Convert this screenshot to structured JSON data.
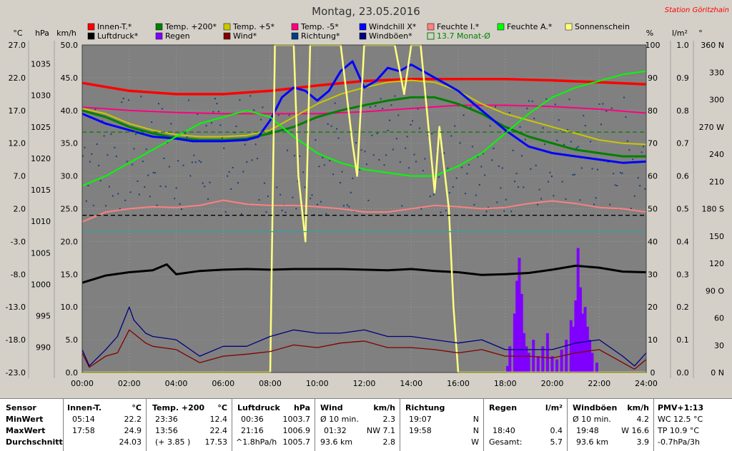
{
  "header": {
    "title": "Montag, 23.05.2016",
    "station": "Station Göritzhain"
  },
  "colors": {
    "plot_bg": "#808080",
    "innen": "#ff0000",
    "temp200": "#008000",
    "temp5": "#c8c800",
    "tempm5": "#ff0080",
    "windchill": "#0000ff",
    "feuchte_i": "#ff8080",
    "feuchte_a": "#00ff00",
    "sonne": "#ffff80",
    "luftdruck": "#000000",
    "regen": "#8000ff",
    "wind": "#800000",
    "richtung": "#004080",
    "windboeen": "#000080"
  },
  "legend": [
    {
      "label": "Innen-T.*",
      "color": "#ff0000"
    },
    {
      "label": "Temp. +200*",
      "color": "#008000"
    },
    {
      "label": "Temp. +5*",
      "color": "#c8c800"
    },
    {
      "label": "Temp. -5*",
      "color": "#ff0080"
    },
    {
      "label": "Windchill X*",
      "color": "#0000ff"
    },
    {
      "label": "Feuchte I.*",
      "color": "#ff8080"
    },
    {
      "label": "Feuchte A.*",
      "color": "#00ff00"
    },
    {
      "label": "Sonnenschein",
      "color": "#ffff80"
    },
    {
      "label": "Luftdruck*",
      "color": "#000000"
    },
    {
      "label": "Regen",
      "color": "#8000ff"
    },
    {
      "label": "Wind*",
      "color": "#800000"
    },
    {
      "label": "Richtung*",
      "color": "#004080"
    },
    {
      "label": "Windböen*",
      "color": "#000080"
    },
    {
      "label": "13.7 Monat-Ø",
      "color": "#008000",
      "outline": true
    }
  ],
  "axis_units": {
    "celsius": "°C",
    "hpa": "hPa",
    "kmh": "km/h",
    "percent": "%",
    "lm2": "l/m²",
    "degree": "°"
  },
  "chart_data": {
    "type": "line",
    "title": "Montag, 23.05.2016",
    "x_ticks": [
      "00:00",
      "02:00",
      "04:00",
      "06:00",
      "08:00",
      "10:00",
      "12:00",
      "14:00",
      "16:00",
      "18:00",
      "20:00",
      "22:00",
      "24:00"
    ],
    "xlim": [
      0,
      24
    ],
    "axes": {
      "celsius": {
        "ticks": [
          "27.0",
          "22.0",
          "17.0",
          "12.0",
          "7.0",
          "2.0",
          "-3.0",
          "-8.0",
          "-13.0",
          "-18.0",
          "-23.0"
        ],
        "ylim": [
          -23,
          27
        ]
      },
      "hpa": {
        "ticks": [
          "1035",
          "1030",
          "1025",
          "1020",
          "1015",
          "1010",
          "1005",
          "1000",
          "995",
          "990"
        ],
        "ylim": [
          990,
          1040
        ]
      },
      "kmh": {
        "ticks": [
          "50.0",
          "45.0",
          "40.0",
          "35.0",
          "30.0",
          "25.0",
          "20.0",
          "15.0",
          "10.0",
          "5.0",
          "0.0"
        ],
        "ylim": [
          0,
          50
        ]
      },
      "percent": {
        "ticks": [
          "100",
          "90",
          "80",
          "70",
          "60",
          "50",
          "40",
          "30",
          "20",
          "10",
          "0"
        ],
        "ylim": [
          0,
          100
        ]
      },
      "lm2": {
        "ticks": [
          "1.0",
          "0.9",
          "0.8",
          "0.7",
          "0.6",
          "0.5",
          "0.4",
          "0.3",
          "0.2",
          "0.1",
          "0.0"
        ],
        "ylim": [
          0,
          1
        ]
      },
      "degree": {
        "ticks": [
          "360 N",
          "330",
          "300",
          "270 W",
          "240",
          "210",
          "180 S",
          "150",
          "120",
          "90 O",
          "60",
          "30",
          "0 N"
        ],
        "ylim": [
          0,
          360
        ]
      }
    },
    "series": [
      {
        "name": "Innen-T.*",
        "color": "#ff0000",
        "unit": "kmh",
        "x": [
          0,
          2,
          4,
          6,
          8,
          10,
          12,
          14,
          16,
          18,
          20,
          22,
          24
        ],
        "y": [
          44.2,
          43.0,
          42.5,
          42.5,
          43.0,
          43.8,
          44.5,
          44.8,
          44.8,
          44.8,
          44.6,
          44.3,
          44.0
        ]
      },
      {
        "name": "Temp. -5*",
        "color": "#ff0080",
        "unit": "kmh",
        "x": [
          0,
          2,
          4,
          6,
          8,
          10,
          12,
          14,
          16,
          18,
          20,
          22,
          24
        ],
        "y": [
          40.5,
          40.0,
          39.7,
          39.5,
          39.5,
          39.5,
          39.8,
          40.3,
          40.8,
          40.8,
          40.6,
          40.2,
          39.6
        ]
      },
      {
        "name": "Temp. +5*",
        "color": "#c8c800",
        "unit": "kmh",
        "x": [
          0,
          1,
          2,
          3,
          4,
          5,
          6,
          7,
          8,
          9,
          10,
          11,
          12,
          13,
          14,
          15,
          16,
          17,
          18,
          19,
          20,
          21,
          22,
          23,
          24
        ],
        "y": [
          40.3,
          39.5,
          38.0,
          37.0,
          36.3,
          36.0,
          36.0,
          36.2,
          37.0,
          39.0,
          41.0,
          42.5,
          43.5,
          44.3,
          44.6,
          44.3,
          43.0,
          41.0,
          39.5,
          38.5,
          37.5,
          36.5,
          35.5,
          35.0,
          34.8
        ]
      },
      {
        "name": "Temp. +200*",
        "color": "#008000",
        "unit": "kmh",
        "x": [
          0,
          1,
          2,
          3,
          4,
          5,
          6,
          7,
          8,
          9,
          10,
          11,
          12,
          13,
          14,
          15,
          16,
          17,
          18,
          19,
          20,
          21,
          22,
          23,
          24
        ],
        "y": [
          40.0,
          39.0,
          37.5,
          36.5,
          35.8,
          35.5,
          35.5,
          35.7,
          36.5,
          37.5,
          39.0,
          40.0,
          40.8,
          41.5,
          42.0,
          42.0,
          41.0,
          39.5,
          37.5,
          36.0,
          35.0,
          34.0,
          33.5,
          33.0,
          33.0
        ]
      },
      {
        "name": "Windchill X*",
        "color": "#0000ff",
        "unit": "kmh",
        "x": [
          0,
          1,
          2,
          3,
          4,
          4.7,
          5,
          6,
          7,
          7.5,
          8,
          8.5,
          9,
          9.5,
          10,
          10.5,
          11,
          11.5,
          12,
          12.5,
          13,
          13.5,
          14,
          14.5,
          15,
          15.5,
          16,
          17,
          18,
          19,
          20,
          21,
          22,
          23,
          24
        ],
        "y": [
          39.5,
          38.0,
          37.0,
          36.0,
          35.7,
          35.3,
          35.3,
          35.3,
          35.5,
          36.0,
          38.5,
          42.0,
          43.5,
          43.0,
          41.5,
          43.0,
          46.0,
          47.5,
          43.5,
          44.5,
          46.5,
          46.0,
          47.0,
          46.0,
          45.0,
          44.0,
          43.0,
          40.0,
          37.0,
          34.5,
          33.5,
          33.0,
          32.5,
          32.0,
          32.2
        ]
      },
      {
        "name": "Feuchte A.*",
        "color": "#00ff00",
        "unit": "kmh",
        "x": [
          0,
          1,
          2,
          3,
          4,
          5,
          6,
          7,
          8,
          9,
          10,
          11,
          12,
          13,
          14,
          15,
          16,
          17,
          18,
          19,
          20,
          21,
          22,
          23,
          24
        ],
        "y": [
          28.5,
          30.0,
          32.0,
          34.0,
          36.0,
          38.0,
          39.0,
          40.0,
          39.0,
          36.0,
          33.5,
          32.0,
          31.0,
          30.5,
          30.0,
          30.0,
          31.5,
          33.5,
          36.5,
          39.5,
          42.0,
          43.5,
          44.5,
          45.5,
          46.0
        ]
      },
      {
        "name": "Feuchte I.*",
        "color": "#ff8080",
        "unit": "kmh",
        "x": [
          0,
          1,
          2,
          3,
          4,
          5,
          6,
          7,
          8,
          9,
          10,
          11,
          12,
          13,
          14,
          15,
          16,
          17,
          18,
          19,
          20,
          21,
          22,
          23,
          24
        ],
        "y": [
          23.0,
          24.5,
          25.0,
          25.3,
          25.2,
          25.5,
          26.3,
          25.7,
          25.5,
          25.5,
          25.3,
          25.0,
          24.5,
          24.5,
          25.0,
          25.5,
          25.3,
          25.0,
          25.2,
          25.8,
          26.2,
          25.8,
          25.2,
          25.0,
          24.5
        ]
      },
      {
        "name": "Luftdruck*",
        "color": "#000000",
        "unit": "hpa",
        "x": [
          0,
          1,
          2,
          3,
          3.6,
          4,
          5,
          6,
          7,
          8,
          9,
          10,
          11,
          12,
          13,
          14,
          15,
          16,
          17,
          18,
          19,
          20,
          21,
          22,
          23,
          24
        ],
        "y": [
          1003.7,
          1004.8,
          1005.3,
          1005.6,
          1006.5,
          1005.0,
          1005.5,
          1005.7,
          1005.8,
          1005.7,
          1005.8,
          1005.8,
          1005.8,
          1005.7,
          1005.6,
          1005.8,
          1005.5,
          1005.3,
          1004.9,
          1005.0,
          1005.2,
          1005.7,
          1006.3,
          1006.0,
          1005.4,
          1005.3
        ]
      },
      {
        "name": "Sonnenschein",
        "color": "#ffff80",
        "unit": "lm2",
        "x": [
          0,
          8,
          8.2,
          9,
          9.2,
          9.5,
          9.7,
          10,
          10.2,
          11,
          11.5,
          11.7,
          12,
          13,
          13.3,
          13.7,
          14,
          14.4,
          14.6,
          15,
          15.2,
          15.6,
          15.8,
          16,
          24
        ],
        "y": [
          0,
          0,
          1,
          1,
          0.6,
          0.4,
          1,
          1,
          1,
          1,
          0.7,
          0.6,
          1,
          1,
          1,
          0.85,
          1,
          1,
          0.85,
          0.55,
          0.75,
          0.5,
          0.2,
          0,
          0
        ]
      },
      {
        "name": "Wind*",
        "color": "#800000",
        "unit": "kmh",
        "x": [
          0,
          0.3,
          1,
          1.5,
          2,
          2.7,
          3,
          4,
          5,
          6,
          7,
          8,
          9,
          10,
          11,
          12,
          13,
          14,
          15,
          16,
          17,
          18,
          19,
          20,
          21,
          22,
          23,
          23.5,
          24
        ],
        "y": [
          3,
          0.8,
          2.5,
          3.0,
          6.5,
          4.5,
          4.0,
          3.5,
          1.5,
          2.5,
          2.8,
          3.2,
          4.2,
          3.8,
          4.5,
          4.8,
          3.8,
          3.8,
          3.5,
          3.0,
          3.5,
          2.5,
          2.5,
          2.2,
          3.0,
          3.5,
          1.5,
          0.5,
          2.0
        ]
      },
      {
        "name": "Windböen*",
        "color": "#000080",
        "unit": "kmh",
        "x": [
          0,
          0.3,
          1,
          1.5,
          2,
          2.2,
          2.7,
          3,
          4,
          5,
          6,
          7,
          8,
          9,
          10,
          11,
          12,
          13,
          14,
          15,
          16,
          17,
          18,
          19,
          20,
          21,
          22,
          23,
          23.5,
          24
        ],
        "y": [
          3.5,
          1.0,
          3.5,
          5.5,
          10.0,
          8.0,
          6.0,
          5.5,
          5.0,
          2.5,
          4.0,
          4.0,
          5.5,
          6.5,
          6.0,
          6.0,
          6.5,
          5.5,
          5.5,
          5.0,
          4.5,
          5.0,
          3.5,
          3.5,
          3.5,
          4.5,
          5.0,
          2.5,
          1.0,
          3.0
        ]
      },
      {
        "name": "Monat-Ø",
        "color": "#008000",
        "unit": "celsius",
        "x": [
          0,
          24
        ],
        "y": [
          13.7,
          13.7
        ],
        "dashed": true
      },
      {
        "name": "Ref. schwarz",
        "color": "#000000",
        "unit": "kmh",
        "x": [
          0,
          24
        ],
        "y": [
          24.0,
          24.0
        ],
        "dashed": true
      },
      {
        "name": "Ref. türkis",
        "color": "#30a0a0",
        "unit": "kmh",
        "x": [
          0,
          24
        ],
        "y": [
          21.5,
          21.5
        ]
      }
    ],
    "regen": {
      "name": "Regen",
      "color": "#8000ff",
      "unit": "lm2",
      "x": [
        18.1,
        18.2,
        18.4,
        18.5,
        18.6,
        18.7,
        18.8,
        18.9,
        19.0,
        19.2,
        19.4,
        19.6,
        19.8,
        20.0,
        20.2,
        20.4,
        20.6,
        20.8,
        20.9,
        21.0,
        21.1,
        21.2,
        21.3,
        21.4,
        21.5,
        21.6,
        21.7,
        21.9
      ],
      "y": [
        0.02,
        0.08,
        0.18,
        0.28,
        0.35,
        0.24,
        0.12,
        0.08,
        0.06,
        0.1,
        0.05,
        0.08,
        0.12,
        0.05,
        0.04,
        0.07,
        0.1,
        0.16,
        0.14,
        0.22,
        0.38,
        0.26,
        0.18,
        0.2,
        0.14,
        0.1,
        0.06,
        0.03
      ]
    },
    "richtung_points": 320
  },
  "stats": {
    "labels": {
      "sensor": "Sensor",
      "min": "MinWert",
      "max": "MaxWert",
      "avg": "Durchschnitt"
    },
    "innen": {
      "title": "Innen-T.",
      "unit": "°C",
      "min_time": "05:14",
      "min": "22.2",
      "max_time": "17:58",
      "max": "24.9",
      "avg": "24.03"
    },
    "temp200": {
      "title": "Temp. +200",
      "unit": "°C",
      "min_time": "23:36",
      "min": "12.4",
      "max_time": "13:56",
      "max": "22.4",
      "avg_extra": "(+ 3.85 )",
      "avg": "17.53"
    },
    "luftdruck": {
      "title": "Luftdruck",
      "unit": "hPa",
      "min_time": "00:36",
      "min": "1003.7",
      "max_time": "21:16",
      "max": "1006.9",
      "avg_extra": "^1.8hPa/h",
      "avg": "1005.7"
    },
    "wind": {
      "title": "Wind",
      "unit": "km/h",
      "min_time": "Ø 10 min.",
      "min": "2.3",
      "max_time": "01:32",
      "max": "NW 7.1",
      "avg_extra": "93.6 km",
      "avg": "2.8"
    },
    "richtung": {
      "title": "Richtung",
      "min_time": "19:07",
      "min": "N",
      "max_time": "19:58",
      "max": "N",
      "avg": "W"
    },
    "regen": {
      "title": "Regen",
      "unit": "l/m²",
      "max_time": "18:40",
      "max": "0.4",
      "avg_label": "Gesamt:",
      "avg": "5.7"
    },
    "windboeen": {
      "title": "Windböen",
      "unit": "km/h",
      "min_time": "Ø 10 min.",
      "min": "4.2",
      "max_time": "19:48",
      "max": "W 16.6",
      "avg_extra": "93.6 km",
      "avg": "3.9"
    },
    "pmv": {
      "title": "PMV+1:13",
      "min": "WC 12.5 °C",
      "max": "TP 10.9 °C",
      "avg": "-0.7hPa/3h"
    }
  }
}
